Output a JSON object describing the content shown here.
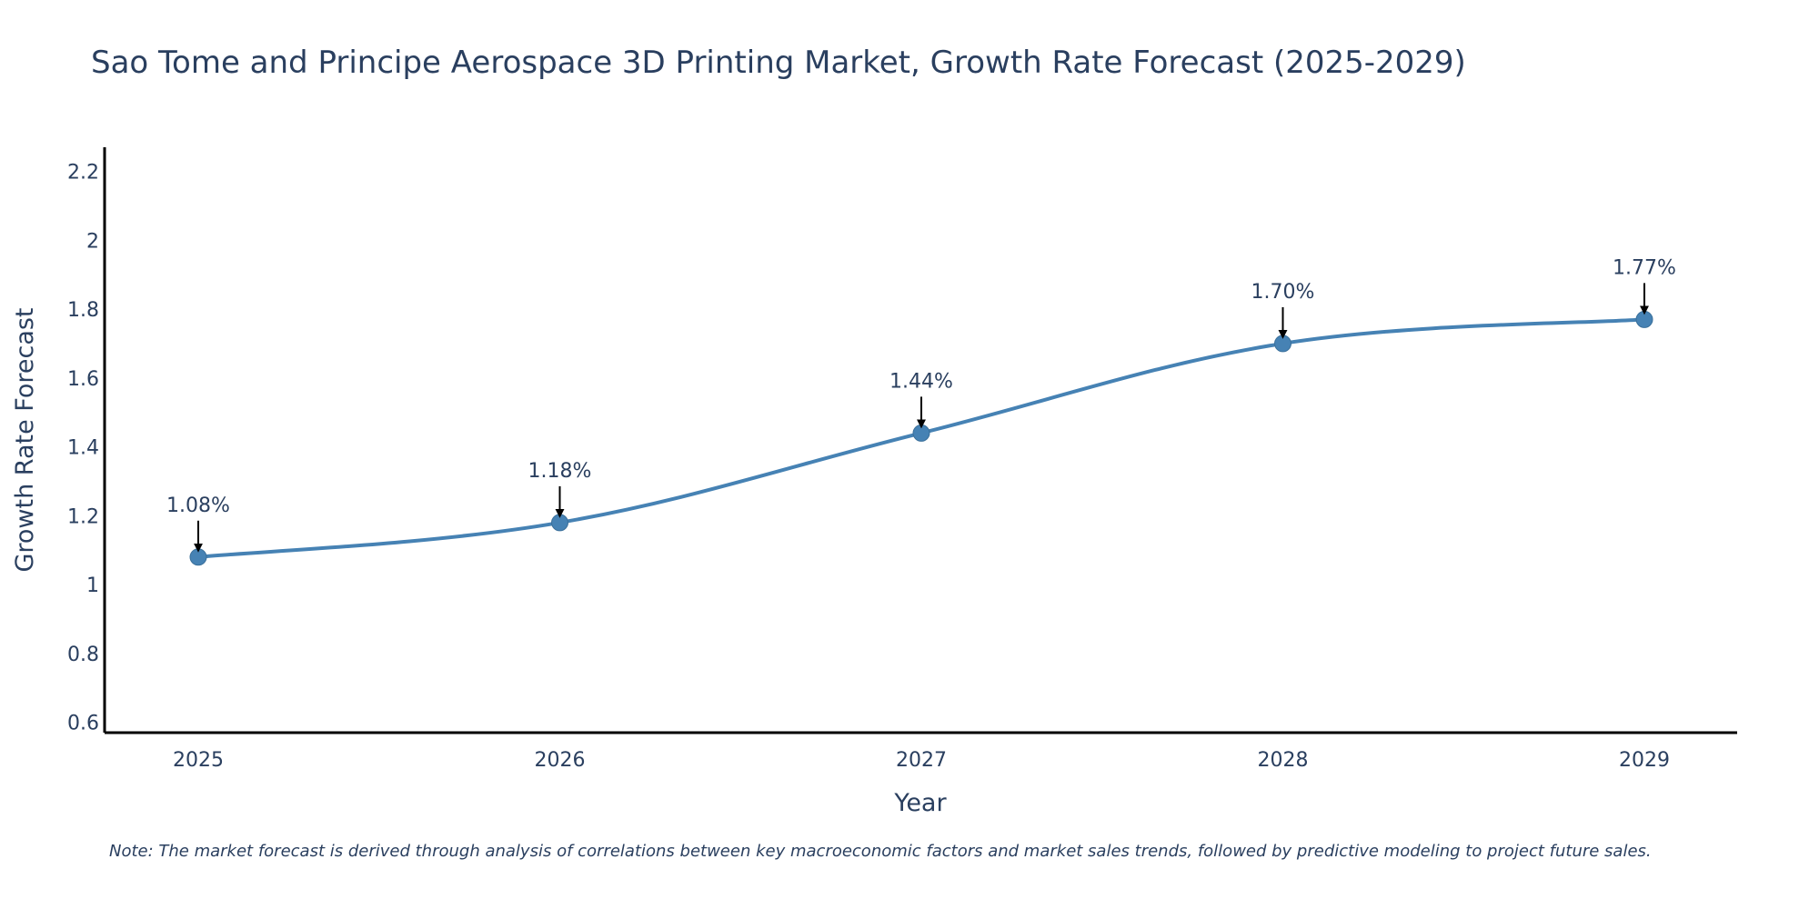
{
  "chart_data": {
    "type": "line",
    "title": "Sao Tome and Principe Aerospace 3D Printing Market, Growth Rate Forecast (2025-2029)",
    "xlabel": "Year",
    "ylabel": "Growth Rate Forecast",
    "categories": [
      "2025",
      "2026",
      "2027",
      "2028",
      "2029"
    ],
    "values": [
      1.08,
      1.18,
      1.44,
      1.7,
      1.77
    ],
    "data_labels": [
      "1.08%",
      "1.18%",
      "1.44%",
      "1.70%",
      "1.77%"
    ],
    "ylim": [
      0.57,
      2.27
    ],
    "yticks": [
      0.6,
      0.8,
      1,
      1.2,
      1.4,
      1.6,
      1.8,
      2,
      2.2
    ],
    "ytick_labels": [
      "0.6",
      "0.8",
      "1",
      "1.2",
      "1.4",
      "1.6",
      "1.8",
      "2",
      "2.2"
    ],
    "grid": false,
    "line_color": "#4682b4",
    "marker_color": "#4682b4",
    "arrow_color": "#000000",
    "note": "Note: The market forecast is derived through analysis of correlations between key macroeconomic factors and market sales trends, followed by predictive modeling to project future sales."
  }
}
